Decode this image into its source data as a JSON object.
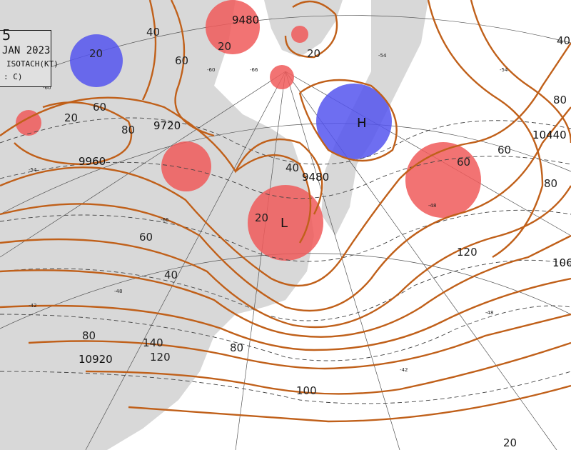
{
  "title_box": {
    "line1": "5",
    "line2": "JAN 2023",
    "line3": "ISOTACH(KT)",
    "line4": ": C)"
  },
  "colors": {
    "land": "#d8d8d8",
    "isotach": "#c0601a",
    "cold_anomaly": "#5555ee",
    "warm_anomaly": "#f05a5a"
  },
  "height_labels": [
    "9480",
    "9720",
    "9960",
    "9480",
    "10440",
    "106",
    "10920"
  ],
  "isotach_labels": [
    "20",
    "40",
    "60",
    "20",
    "20",
    "80",
    "60",
    "20",
    "40",
    "20",
    "60",
    "40",
    "60",
    "80",
    "140",
    "120",
    "80",
    "80",
    "100",
    "120",
    "60",
    "80",
    "40",
    "20"
  ],
  "centers": {
    "high": "H",
    "low": "L"
  },
  "temperature_labels": [
    "-60",
    "-60",
    "-54",
    "-54",
    "-48",
    "-48",
    "-42",
    "-42",
    "-66",
    "-66",
    "-48",
    "-54"
  ],
  "anomaly_circles": [
    {
      "type": "cold"
    },
    {
      "type": "cold"
    },
    {
      "type": "warm"
    },
    {
      "type": "warm"
    },
    {
      "type": "warm"
    },
    {
      "type": "warm"
    },
    {
      "type": "warm"
    },
    {
      "type": "warm"
    },
    {
      "type": "warm"
    }
  ]
}
